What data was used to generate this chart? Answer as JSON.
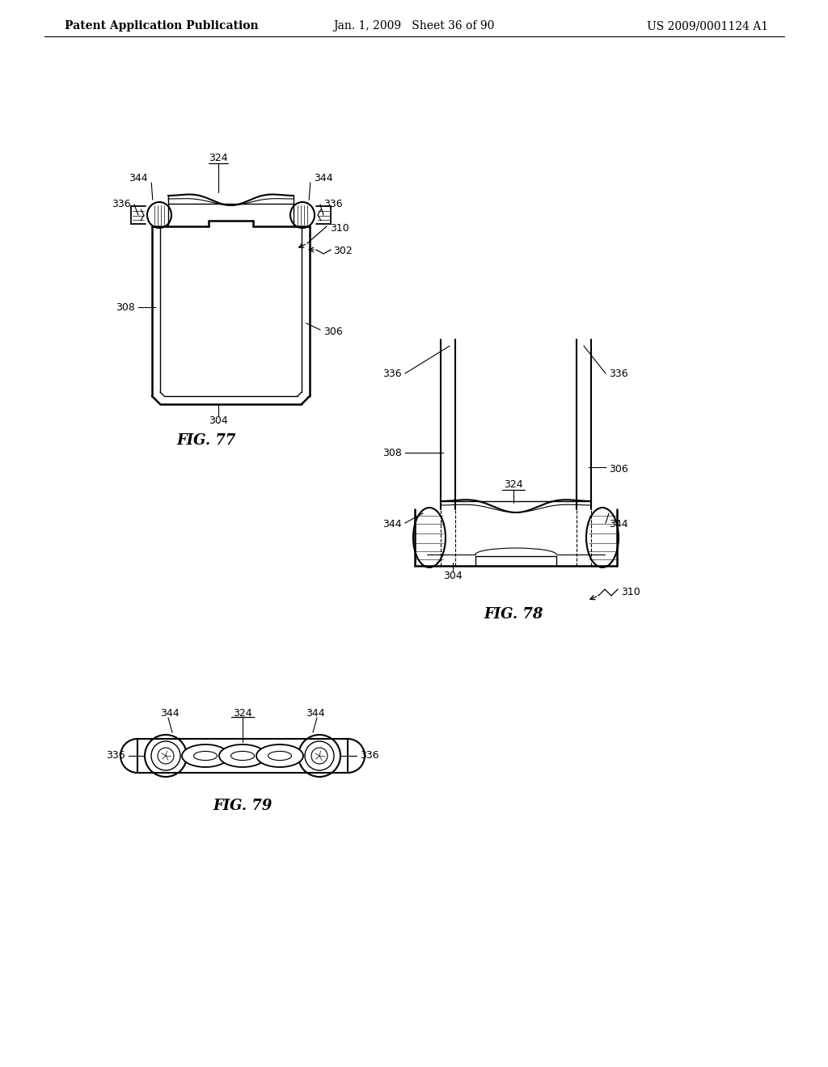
{
  "header_left": "Patent Application Publication",
  "header_mid": "Jan. 1, 2009   Sheet 36 of 90",
  "header_right": "US 2009/0001124 A1",
  "fig77_label": "FIG. 77",
  "fig78_label": "FIG. 78",
  "fig79_label": "FIG. 79",
  "bg_color": "#ffffff",
  "line_color": "#000000",
  "font_size_header": 10,
  "font_size_label": 9,
  "font_size_fig": 13
}
